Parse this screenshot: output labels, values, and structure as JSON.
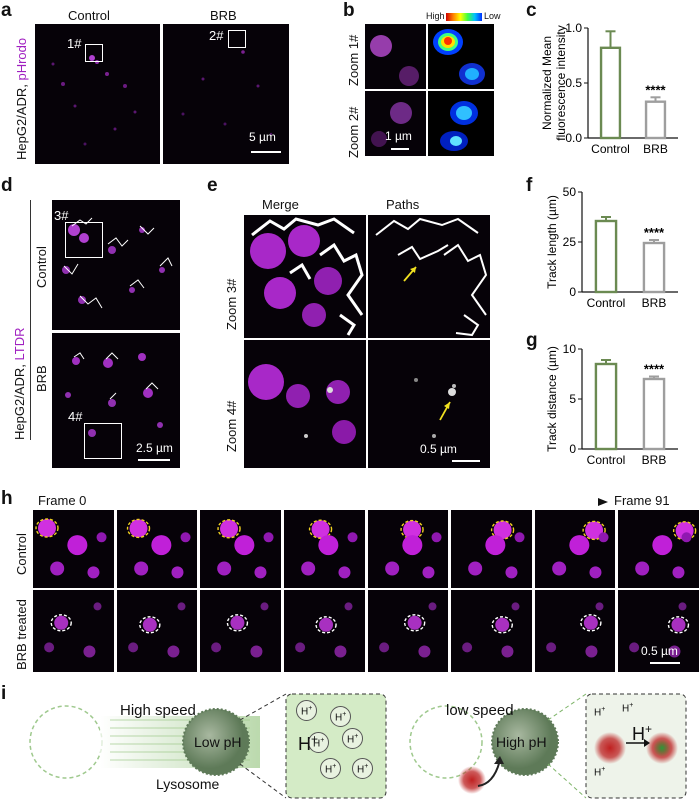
{
  "panels": {
    "a": {
      "label": "a",
      "ylabel_prefix": "HepG2/ADR, ",
      "ylabel_dye": "pHrodo",
      "col1": "Control",
      "col2": "BRB",
      "roi1": "1#",
      "roi2": "2#",
      "scalebar": "5 µm"
    },
    "b": {
      "label": "b",
      "colorbar_high": "High",
      "colorbar_low": "Low",
      "zoom1": "Zoom 1#",
      "zoom2": "Zoom 2#",
      "scalebar": "1 µm"
    },
    "c": {
      "label": "c"
    },
    "d": {
      "label": "d",
      "ylabel_prefix": "HepG2/ADR, ",
      "ylabel_dye": "LTDR",
      "row1": "Control",
      "row2": "BRB",
      "roi3": "3#",
      "roi4": "4#",
      "scalebar": "2.5 µm"
    },
    "e": {
      "label": "e",
      "col1": "Merge",
      "col2": "Paths",
      "zoom3": "Zoom 3#",
      "zoom4": "Zoom 4#",
      "scalebar": "0.5 µm"
    },
    "f": {
      "label": "f"
    },
    "g": {
      "label": "g"
    },
    "h": {
      "label": "h",
      "frame_start": "Frame 0",
      "frame_end": "Frame 91",
      "row1": "Control",
      "row2": "BRB treated",
      "scalebar": "0.5 µm"
    },
    "i": {
      "label": "i",
      "high_speed": "High speed",
      "low_ph": "Low pH",
      "lysosome": "Lysosome",
      "h_plus": "H",
      "plus": "+",
      "low_speed": "low speed",
      "high_ph": "High pH"
    }
  },
  "chart_data": [
    {
      "id": "c",
      "type": "bar",
      "categories": [
        "Control",
        "BRB"
      ],
      "values": [
        0.82,
        0.33
      ],
      "errors": [
        0.15,
        0.04
      ],
      "ylabel": "Normalized Mean fluorescence intensity",
      "ylim": [
        0,
        1.0
      ],
      "yticks": [
        "0.0",
        "0.5",
        "1.0"
      ],
      "significance": "****",
      "colors": [
        "#6b8a52",
        "#9e9e9e"
      ]
    },
    {
      "id": "f",
      "type": "bar",
      "categories": [
        "Control",
        "BRB"
      ],
      "values": [
        35.5,
        24.5
      ],
      "errors": [
        2.0,
        1.5
      ],
      "ylabel": "Track length (µm)",
      "ylim": [
        0,
        50
      ],
      "yticks": [
        "0",
        "25",
        "50"
      ],
      "significance": "****",
      "colors": [
        "#6b8a52",
        "#9e9e9e"
      ]
    },
    {
      "id": "g",
      "type": "bar",
      "categories": [
        "Control",
        "BRB"
      ],
      "values": [
        8.5,
        7.0
      ],
      "errors": [
        0.4,
        0.25
      ],
      "ylabel": "Track distance (µm)",
      "ylim": [
        0,
        10
      ],
      "yticks": [
        "0",
        "5",
        "10"
      ],
      "significance": "****",
      "colors": [
        "#6b8a52",
        "#9e9e9e"
      ]
    }
  ]
}
